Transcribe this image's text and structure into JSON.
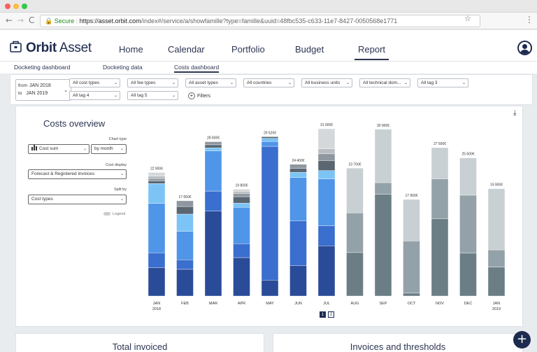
{
  "browser": {
    "secure_label": "Secure",
    "url_host": "https://asset.orbit.com",
    "url_rest": "/index#/service/a/showfamille?type=famille&uuid=48fbc535-c633-11e7-8427-0050568e1771",
    "back_icon": "arrow-left-icon",
    "forward_icon": "arrow-right-icon",
    "reload_icon": "reload-icon"
  },
  "app": {
    "brand_bold": "Orbit",
    "brand_light": "Asset",
    "nav": [
      "Home",
      "Calendar",
      "Portfolio",
      "Budget",
      "Report"
    ],
    "active_nav": "Report"
  },
  "subtabs": [
    "Docketing dashboard",
    "Docketing data",
    "Costs dashboard"
  ],
  "active_subtab": "Costs dashboard",
  "filters": {
    "date_from_label": "from",
    "date_from": "JAN 2018",
    "date_to_label": "to",
    "date_to": "JAN 2019",
    "row1": [
      "All cost types",
      "All fee types",
      "All asset types",
      "All countries",
      "All business units",
      "All technical dom...",
      "All tag 3"
    ],
    "row2": [
      "All tag 4",
      "All tag 5"
    ],
    "filters_button": "Filters"
  },
  "chart_panel": {
    "title": "Costs overview",
    "chart_type_label": "Chart type",
    "chart_type_value": "Cost sum",
    "period_value": "by month",
    "cost_display_label": "Cost display",
    "cost_display_value": "Forecast & Registered invoices",
    "split_by_label": "Split by",
    "split_by_value": "Cost types",
    "legend_label": "Legend",
    "pages": [
      "1",
      "2"
    ]
  },
  "chart_data": {
    "type": "bar",
    "stacked": true,
    "unit": "€",
    "categories": [
      "JAN 2018",
      "FEB",
      "MAR",
      "APR",
      "MAY",
      "JUN",
      "JUL",
      "AUG",
      "SEP",
      "OCT",
      "NOV",
      "DEC",
      "JAN 2019"
    ],
    "totals": [
      22900,
      17650,
      28600,
      19800,
      29520,
      24400,
      31000,
      23700,
      30900,
      17900,
      27500,
      25600,
      19900
    ],
    "data_labels": [
      "22 900€",
      "17 650€",
      "28 600€",
      "19 800€",
      "29 520€",
      "24 400€",
      "31 000€",
      "23 700€",
      "30 900€",
      "17 900€",
      "27 500€",
      "25 600€",
      "19 900€"
    ],
    "registered_months": [
      "JAN 2018",
      "FEB",
      "MAR",
      "APR",
      "MAY",
      "JUN",
      "JUL"
    ],
    "forecast_months": [
      "AUG",
      "SEP",
      "OCT",
      "NOV",
      "DEC",
      "JAN 2019"
    ],
    "segment_shares": [
      [
        0.23,
        0.12,
        0.4,
        0.16,
        0.02,
        0.02,
        0.02,
        0.03
      ],
      [
        0.28,
        0.1,
        0.3,
        0.18,
        0.08,
        0.06
      ],
      [
        0.55,
        0.13,
        0.26,
        0.02,
        0.02,
        0.02
      ],
      [
        0.36,
        0.13,
        0.34,
        0.04,
        0.06,
        0.03,
        0.02,
        0.02
      ],
      [
        0.1,
        0.84,
        0.03,
        0.02,
        0.01
      ],
      [
        0.23,
        0.34,
        0.33,
        0.04,
        0.03,
        0.03
      ],
      [
        0.3,
        0.12,
        0.28,
        0.05,
        0.06,
        0.04,
        0.03,
        0.12
      ],
      [
        0.34,
        0.31,
        0.35
      ],
      [
        0.61,
        0.07,
        0.32
      ],
      [
        0.03,
        0.54,
        0.43
      ],
      [
        0.52,
        0.27,
        0.21
      ],
      [
        0.31,
        0.42,
        0.27
      ],
      [
        0.27,
        0.16,
        0.57
      ]
    ],
    "registered_colors": [
      "#2a4b98",
      "#3a6ecf",
      "#4f95e8",
      "#7cc4f5",
      "#5a6672",
      "#8e979f",
      "#b9bec3",
      "#d5d8db"
    ],
    "forecast_colors": [
      "#6b7e86",
      "#93a2a8",
      "#c9d0d3"
    ],
    "ylim": [
      0,
      31000
    ]
  },
  "bottom_cards": [
    "Total invoiced",
    "Invoices and thresholds"
  ],
  "icons": {
    "download": "download-icon",
    "add": "plus-icon",
    "avatar": "user-icon",
    "logo": "briefcase-icon"
  }
}
